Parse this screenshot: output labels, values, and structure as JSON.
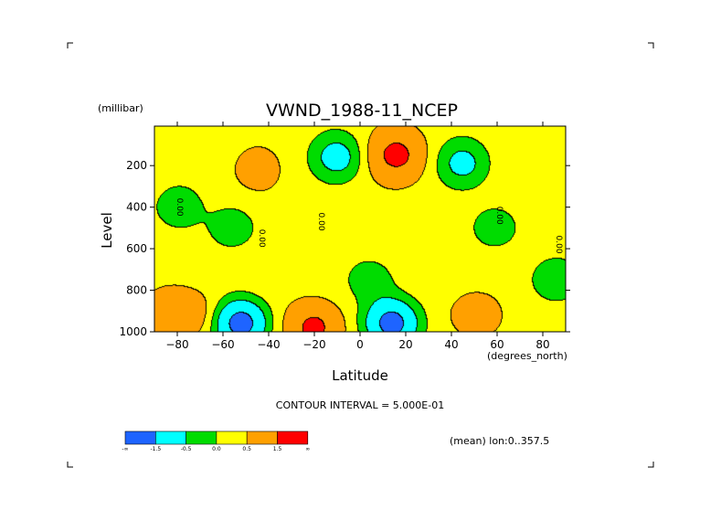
{
  "chart_data": {
    "type": "heatmap",
    "title": "VWND_1988-11_NCEP",
    "xlabel": "Latitude",
    "ylabel": "Level",
    "x_units": "(degrees_north)",
    "y_units": "(millibar)",
    "xlim": [
      -90,
      90
    ],
    "ylim": [
      1000,
      10
    ],
    "y_axis_inverted": true,
    "x_ticks": [
      -80,
      -60,
      -40,
      -20,
      0,
      20,
      40,
      60,
      80
    ],
    "y_ticks": [
      200,
      400,
      600,
      800,
      1000
    ],
    "contour_interval_label": "CONTOUR INTERVAL = 5.000E-01",
    "note": "(mean) lon:0..357.5",
    "zero_contour_label": "0.00",
    "levels": [
      {
        "range": [
          null,
          -1.5
        ],
        "color": "#1e64ff"
      },
      {
        "range": [
          -1.5,
          -0.5
        ],
        "color": "#00ffff"
      },
      {
        "range": [
          -0.5,
          0.0
        ],
        "color": "#00dc00"
      },
      {
        "range": [
          0.0,
          0.5
        ],
        "color": "#ffff00"
      },
      {
        "range": [
          0.5,
          1.5
        ],
        "color": "#ffa000"
      },
      {
        "range": [
          1.5,
          null
        ],
        "color": "#ff0000"
      }
    ],
    "colorbar_labels": [
      "-∞",
      "-1.5",
      "-0.5",
      "0.0",
      "0.5",
      "1.5",
      "∞"
    ],
    "features": [
      {
        "lat": -82,
        "level": 900,
        "value": 0.9
      },
      {
        "lat": -72,
        "level": 920,
        "value": 0.8
      },
      {
        "lat": -52,
        "level": 960,
        "value": -2.0
      },
      {
        "lat": -20,
        "level": 980,
        "value": 1.8
      },
      {
        "lat": 14,
        "level": 960,
        "value": -2.0
      },
      {
        "lat": 50,
        "level": 920,
        "value": 0.9
      },
      {
        "lat": 16,
        "level": 150,
        "value": 1.8
      },
      {
        "lat": -10,
        "level": 160,
        "value": -0.8
      },
      {
        "lat": 45,
        "level": 190,
        "value": -0.7
      },
      {
        "lat": -45,
        "level": 220,
        "value": 0.7
      },
      {
        "lat": -80,
        "level": 400,
        "value": -0.3
      },
      {
        "lat": -55,
        "level": 500,
        "value": -0.3
      },
      {
        "lat": 5,
        "level": 750,
        "value": -0.3
      },
      {
        "lat": 60,
        "level": 500,
        "value": -0.3
      },
      {
        "lat": 85,
        "level": 750,
        "value": -0.4
      }
    ]
  }
}
